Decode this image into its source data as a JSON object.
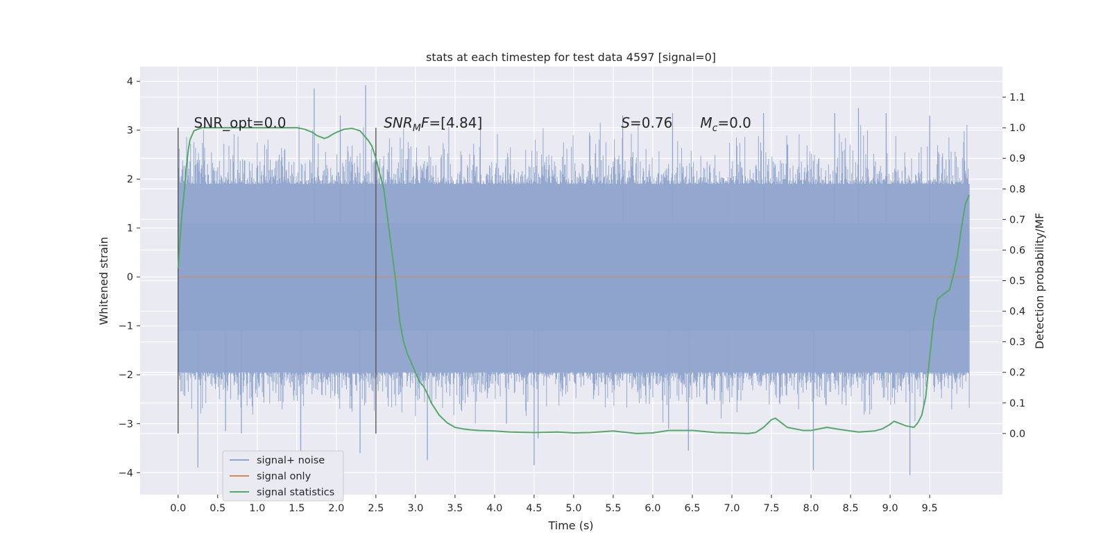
{
  "chart_data": {
    "type": "line",
    "title": "stats at each timestep for test data 4597 [signal=0]",
    "xlabel": "Time (s)",
    "ylabel": "Whitened strain",
    "y2label": "Detection probability/MF",
    "xlim": [
      -0.48,
      10.42
    ],
    "ylim": [
      -4.45,
      4.3
    ],
    "y2lim": [
      -0.2,
      1.2
    ],
    "xticks": [
      "0.0",
      "0.5",
      "1.0",
      "1.5",
      "2.0",
      "2.5",
      "3.0",
      "3.5",
      "4.0",
      "4.5",
      "5.0",
      "5.5",
      "6.0",
      "6.5",
      "7.0",
      "7.5",
      "8.0",
      "8.5",
      "9.0",
      "9.5"
    ],
    "yticks": [
      "−4",
      "−3",
      "−2",
      "−1",
      "0",
      "1",
      "2",
      "3",
      "4"
    ],
    "y2ticks": [
      "0.0",
      "0.1",
      "0.2",
      "0.3",
      "0.4",
      "0.5",
      "0.6",
      "0.7",
      "0.8",
      "0.9",
      "1.0",
      "1.1"
    ],
    "grid": true,
    "legend": {
      "placement": "lower-left"
    },
    "colors": {
      "noise": "#8fa4cc",
      "signal": "#dd8452",
      "stats": "#55a868",
      "marker": "#555555",
      "background": "#eaeaf2"
    },
    "annotations": [
      {
        "name": "snr-opt",
        "x": 0.2,
        "y": 3.05,
        "text": "SNR_opt=0.0"
      },
      {
        "name": "snr-mf",
        "x": 2.6,
        "y": 3.05,
        "text": "SNR_MF=[4.84]"
      },
      {
        "name": "s-stat",
        "x": 5.6,
        "y": 3.05,
        "text": "S=0.76"
      },
      {
        "name": "mc",
        "x": 6.6,
        "y": 3.05,
        "text": "M_c=0.0"
      }
    ],
    "vertical_markers": [
      {
        "x": 0.0,
        "y_range": [
          -3.2,
          3.05
        ]
      },
      {
        "x": 2.5,
        "y_range": [
          -3.2,
          3.05
        ]
      }
    ],
    "series": [
      {
        "name": "signal+ noise",
        "axis": "left",
        "x_range": [
          0.0,
          10.0
        ],
        "band": {
          "dense_min": -1.95,
          "dense_max": 1.9,
          "peak_max": 3.9,
          "peak_min": -4.05
        },
        "spikes": [
          [
            0.25,
            -3.9
          ],
          [
            0.6,
            -3.15
          ],
          [
            0.8,
            -3.2
          ],
          [
            1.55,
            -3.9
          ],
          [
            1.72,
            3.85
          ],
          [
            2.05,
            3.3
          ],
          [
            2.3,
            -3.6
          ],
          [
            2.37,
            3.92
          ],
          [
            3.15,
            -3.75
          ],
          [
            4.15,
            -3.0
          ],
          [
            4.5,
            -3.85
          ],
          [
            4.55,
            -3.3
          ],
          [
            5.62,
            3.3
          ],
          [
            6.2,
            -3.1
          ],
          [
            6.25,
            3.35
          ],
          [
            6.45,
            -3.55
          ],
          [
            7.4,
            3.35
          ],
          [
            8.03,
            -3.95
          ],
          [
            8.3,
            3.35
          ],
          [
            8.6,
            3.45
          ],
          [
            8.95,
            3.35
          ],
          [
            9.25,
            -4.05
          ],
          [
            9.5,
            3.3
          ]
        ]
      },
      {
        "name": "signal only",
        "axis": "left",
        "x": [
          0.0,
          10.0
        ],
        "values": [
          0.0,
          0.0
        ]
      },
      {
        "name": "signal statistics",
        "axis": "right",
        "x": [
          0.0,
          0.02,
          0.05,
          0.08,
          0.1,
          0.13,
          0.15,
          0.2,
          0.3,
          0.5,
          0.8,
          1.0,
          1.2,
          1.4,
          1.5,
          1.6,
          1.7,
          1.75,
          1.8,
          1.85,
          1.9,
          1.95,
          2.0,
          2.1,
          2.2,
          2.3,
          2.4,
          2.45,
          2.5,
          2.55,
          2.6,
          2.65,
          2.7,
          2.75,
          2.8,
          2.85,
          2.9,
          2.95,
          3.0,
          3.05,
          3.1,
          3.15,
          3.2,
          3.3,
          3.4,
          3.5,
          3.6,
          3.7,
          3.8,
          4.0,
          4.2,
          4.5,
          4.8,
          5.0,
          5.2,
          5.5,
          5.8,
          6.0,
          6.2,
          6.5,
          6.8,
          7.0,
          7.2,
          7.3,
          7.4,
          7.5,
          7.55,
          7.6,
          7.7,
          7.8,
          7.9,
          8.0,
          8.2,
          8.4,
          8.6,
          8.8,
          8.9,
          9.0,
          9.05,
          9.1,
          9.2,
          9.3,
          9.35,
          9.4,
          9.45,
          9.5,
          9.55,
          9.6,
          9.65,
          9.7,
          9.75,
          9.8,
          9.85,
          9.9,
          9.95,
          10.0
        ],
        "values": [
          0.54,
          0.62,
          0.72,
          0.8,
          0.86,
          0.93,
          0.96,
          0.99,
          1.0,
          1.0,
          1.0,
          1.0,
          1.0,
          1.0,
          1.0,
          0.995,
          0.985,
          0.975,
          0.97,
          0.965,
          0.97,
          0.978,
          0.985,
          0.995,
          0.998,
          0.99,
          0.96,
          0.94,
          0.9,
          0.85,
          0.8,
          0.7,
          0.6,
          0.5,
          0.37,
          0.3,
          0.26,
          0.23,
          0.2,
          0.17,
          0.155,
          0.13,
          0.1,
          0.06,
          0.035,
          0.02,
          0.015,
          0.012,
          0.01,
          0.008,
          0.005,
          0.003,
          0.005,
          0.002,
          0.003,
          0.008,
          0.0,
          0.002,
          0.01,
          0.01,
          0.003,
          0.002,
          0.0,
          0.003,
          0.02,
          0.045,
          0.05,
          0.04,
          0.02,
          0.015,
          0.01,
          0.01,
          0.02,
          0.012,
          0.005,
          0.008,
          0.015,
          0.03,
          0.04,
          0.035,
          0.025,
          0.02,
          0.035,
          0.06,
          0.12,
          0.25,
          0.37,
          0.44,
          0.45,
          0.46,
          0.47,
          0.52,
          0.58,
          0.67,
          0.75,
          0.78
        ]
      }
    ]
  }
}
